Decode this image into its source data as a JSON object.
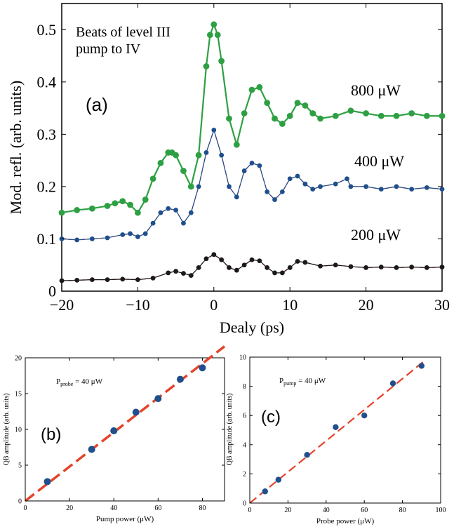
{
  "chart_data": [
    {
      "type": "scatter",
      "panel_label": "(a)",
      "annotation": [
        "Beats of level III",
        "pump to IV"
      ],
      "xlabel": "Dealy (ps)",
      "ylabel": "Mod. refl. (arb. units)",
      "xlim": [
        -20,
        30
      ],
      "ylim": [
        0,
        0.55
      ],
      "xticks": [
        "-20",
        "-10",
        "0",
        "10",
        "20",
        "30"
      ],
      "yticks": [
        "0",
        "0.1",
        "0.2",
        "0.3",
        "0.4",
        "0.5"
      ],
      "grid": false,
      "colors": {
        "fit": "#e5432b",
        "s800": "#2ea043",
        "s400": "#1f4f8c",
        "s200": "#1a1a1a"
      },
      "series": [
        {
          "name": "800 μW",
          "color": "#2ea043",
          "fit_color": "#e5432b",
          "x": [
            -20,
            -18,
            -16,
            -14,
            -13,
            -12,
            -11,
            -10,
            -9,
            -8,
            -7,
            -6,
            -5.5,
            -5,
            -4,
            -3,
            -2,
            -1,
            -0.5,
            0,
            0.5,
            1,
            2,
            3,
            4,
            5,
            6,
            7,
            8,
            9,
            10,
            11,
            12,
            13,
            14,
            16,
            18,
            20,
            22,
            24,
            26,
            28,
            30
          ],
          "y": [
            0.15,
            0.155,
            0.158,
            0.163,
            0.168,
            0.172,
            0.165,
            0.15,
            0.175,
            0.215,
            0.245,
            0.265,
            0.265,
            0.26,
            0.23,
            0.2,
            0.26,
            0.43,
            0.49,
            0.51,
            0.49,
            0.44,
            0.33,
            0.28,
            0.34,
            0.385,
            0.39,
            0.36,
            0.33,
            0.32,
            0.335,
            0.36,
            0.355,
            0.34,
            0.33,
            0.335,
            0.345,
            0.34,
            0.335,
            0.335,
            0.34,
            0.335,
            0.335
          ]
        },
        {
          "name": "400 μW",
          "color": "#1f4f8c",
          "fit_color": "#e5432b",
          "x": [
            -20,
            -18,
            -16,
            -14,
            -12,
            -11,
            -10,
            -9,
            -8,
            -7,
            -6,
            -5,
            -4,
            -3,
            -2,
            -1,
            0,
            1,
            2,
            3,
            4,
            5,
            6,
            7,
            8,
            9,
            10,
            11,
            12,
            13,
            14,
            16,
            17.5,
            18,
            20,
            22,
            24,
            26,
            28,
            30
          ],
          "y": [
            0.1,
            0.098,
            0.1,
            0.102,
            0.108,
            0.11,
            0.104,
            0.11,
            0.13,
            0.15,
            0.158,
            0.155,
            0.13,
            0.15,
            0.2,
            0.265,
            0.308,
            0.26,
            0.2,
            0.18,
            0.23,
            0.245,
            0.24,
            0.19,
            0.175,
            0.19,
            0.215,
            0.22,
            0.205,
            0.195,
            0.2,
            0.205,
            0.215,
            0.2,
            0.2,
            0.195,
            0.2,
            0.195,
            0.198,
            0.195
          ]
        },
        {
          "name": "200 μW",
          "color": "#1a1a1a",
          "fit_color": "#e5432b",
          "x": [
            -20,
            -18,
            -16,
            -14,
            -12,
            -10,
            -8,
            -6,
            -5,
            -4,
            -3,
            -2,
            -1,
            0,
            1,
            2,
            3,
            4,
            5,
            6,
            7,
            8,
            9,
            10,
            11,
            12,
            14,
            16,
            18,
            20,
            22,
            24,
            26,
            28,
            30
          ],
          "y": [
            0.02,
            0.021,
            0.022,
            0.022,
            0.023,
            0.022,
            0.025,
            0.035,
            0.038,
            0.034,
            0.03,
            0.045,
            0.062,
            0.07,
            0.06,
            0.045,
            0.04,
            0.05,
            0.06,
            0.058,
            0.045,
            0.035,
            0.035,
            0.045,
            0.057,
            0.055,
            0.048,
            0.05,
            0.047,
            0.045,
            0.046,
            0.045,
            0.046,
            0.045,
            0.046
          ]
        }
      ]
    },
    {
      "type": "scatter",
      "panel_label": "(b)",
      "annotation_main": "P",
      "annotation_sub": "probe",
      "annotation_rest": " = 40 μW",
      "xlabel": "Pump power (μW)",
      "ylabel": "QB amplitude (arb. units)",
      "xlim": [
        0,
        90
      ],
      "ylim": [
        0,
        20
      ],
      "xticks": [
        "0",
        "20",
        "40",
        "60",
        "80"
      ],
      "yticks": [
        "0",
        "5",
        "10",
        "15",
        "20"
      ],
      "grid": false,
      "marker_color": "#1f4f8c",
      "fit_color": "#e5432b",
      "x": [
        10,
        30,
        40,
        50,
        60,
        70,
        80
      ],
      "y": [
        2.7,
        7.2,
        9.8,
        12.4,
        14.3,
        17.0,
        18.6
      ],
      "fit": {
        "x": [
          0,
          90
        ],
        "y": [
          0,
          21.6
        ]
      }
    },
    {
      "type": "scatter",
      "panel_label": "(c)",
      "annotation_main": "P",
      "annotation_sub": "pump",
      "annotation_rest": " = 40 μW",
      "xlabel": "Probe power (μW)",
      "ylabel": "QB amplitude (arb. units)",
      "xlim": [
        0,
        100
      ],
      "ylim": [
        0,
        10
      ],
      "xticks": [
        "0",
        "20",
        "40",
        "60",
        "80",
        "100"
      ],
      "yticks": [
        "0",
        "2",
        "4",
        "6",
        "8",
        "10"
      ],
      "grid": false,
      "marker_color": "#1f4f8c",
      "fit_color": "#e5432b",
      "x": [
        8,
        15,
        30,
        45,
        60,
        75,
        90
      ],
      "y": [
        0.8,
        1.6,
        3.3,
        5.2,
        6.0,
        8.2,
        9.4
      ],
      "fit": {
        "x": [
          0,
          92
        ],
        "y": [
          0,
          9.8
        ]
      }
    }
  ]
}
